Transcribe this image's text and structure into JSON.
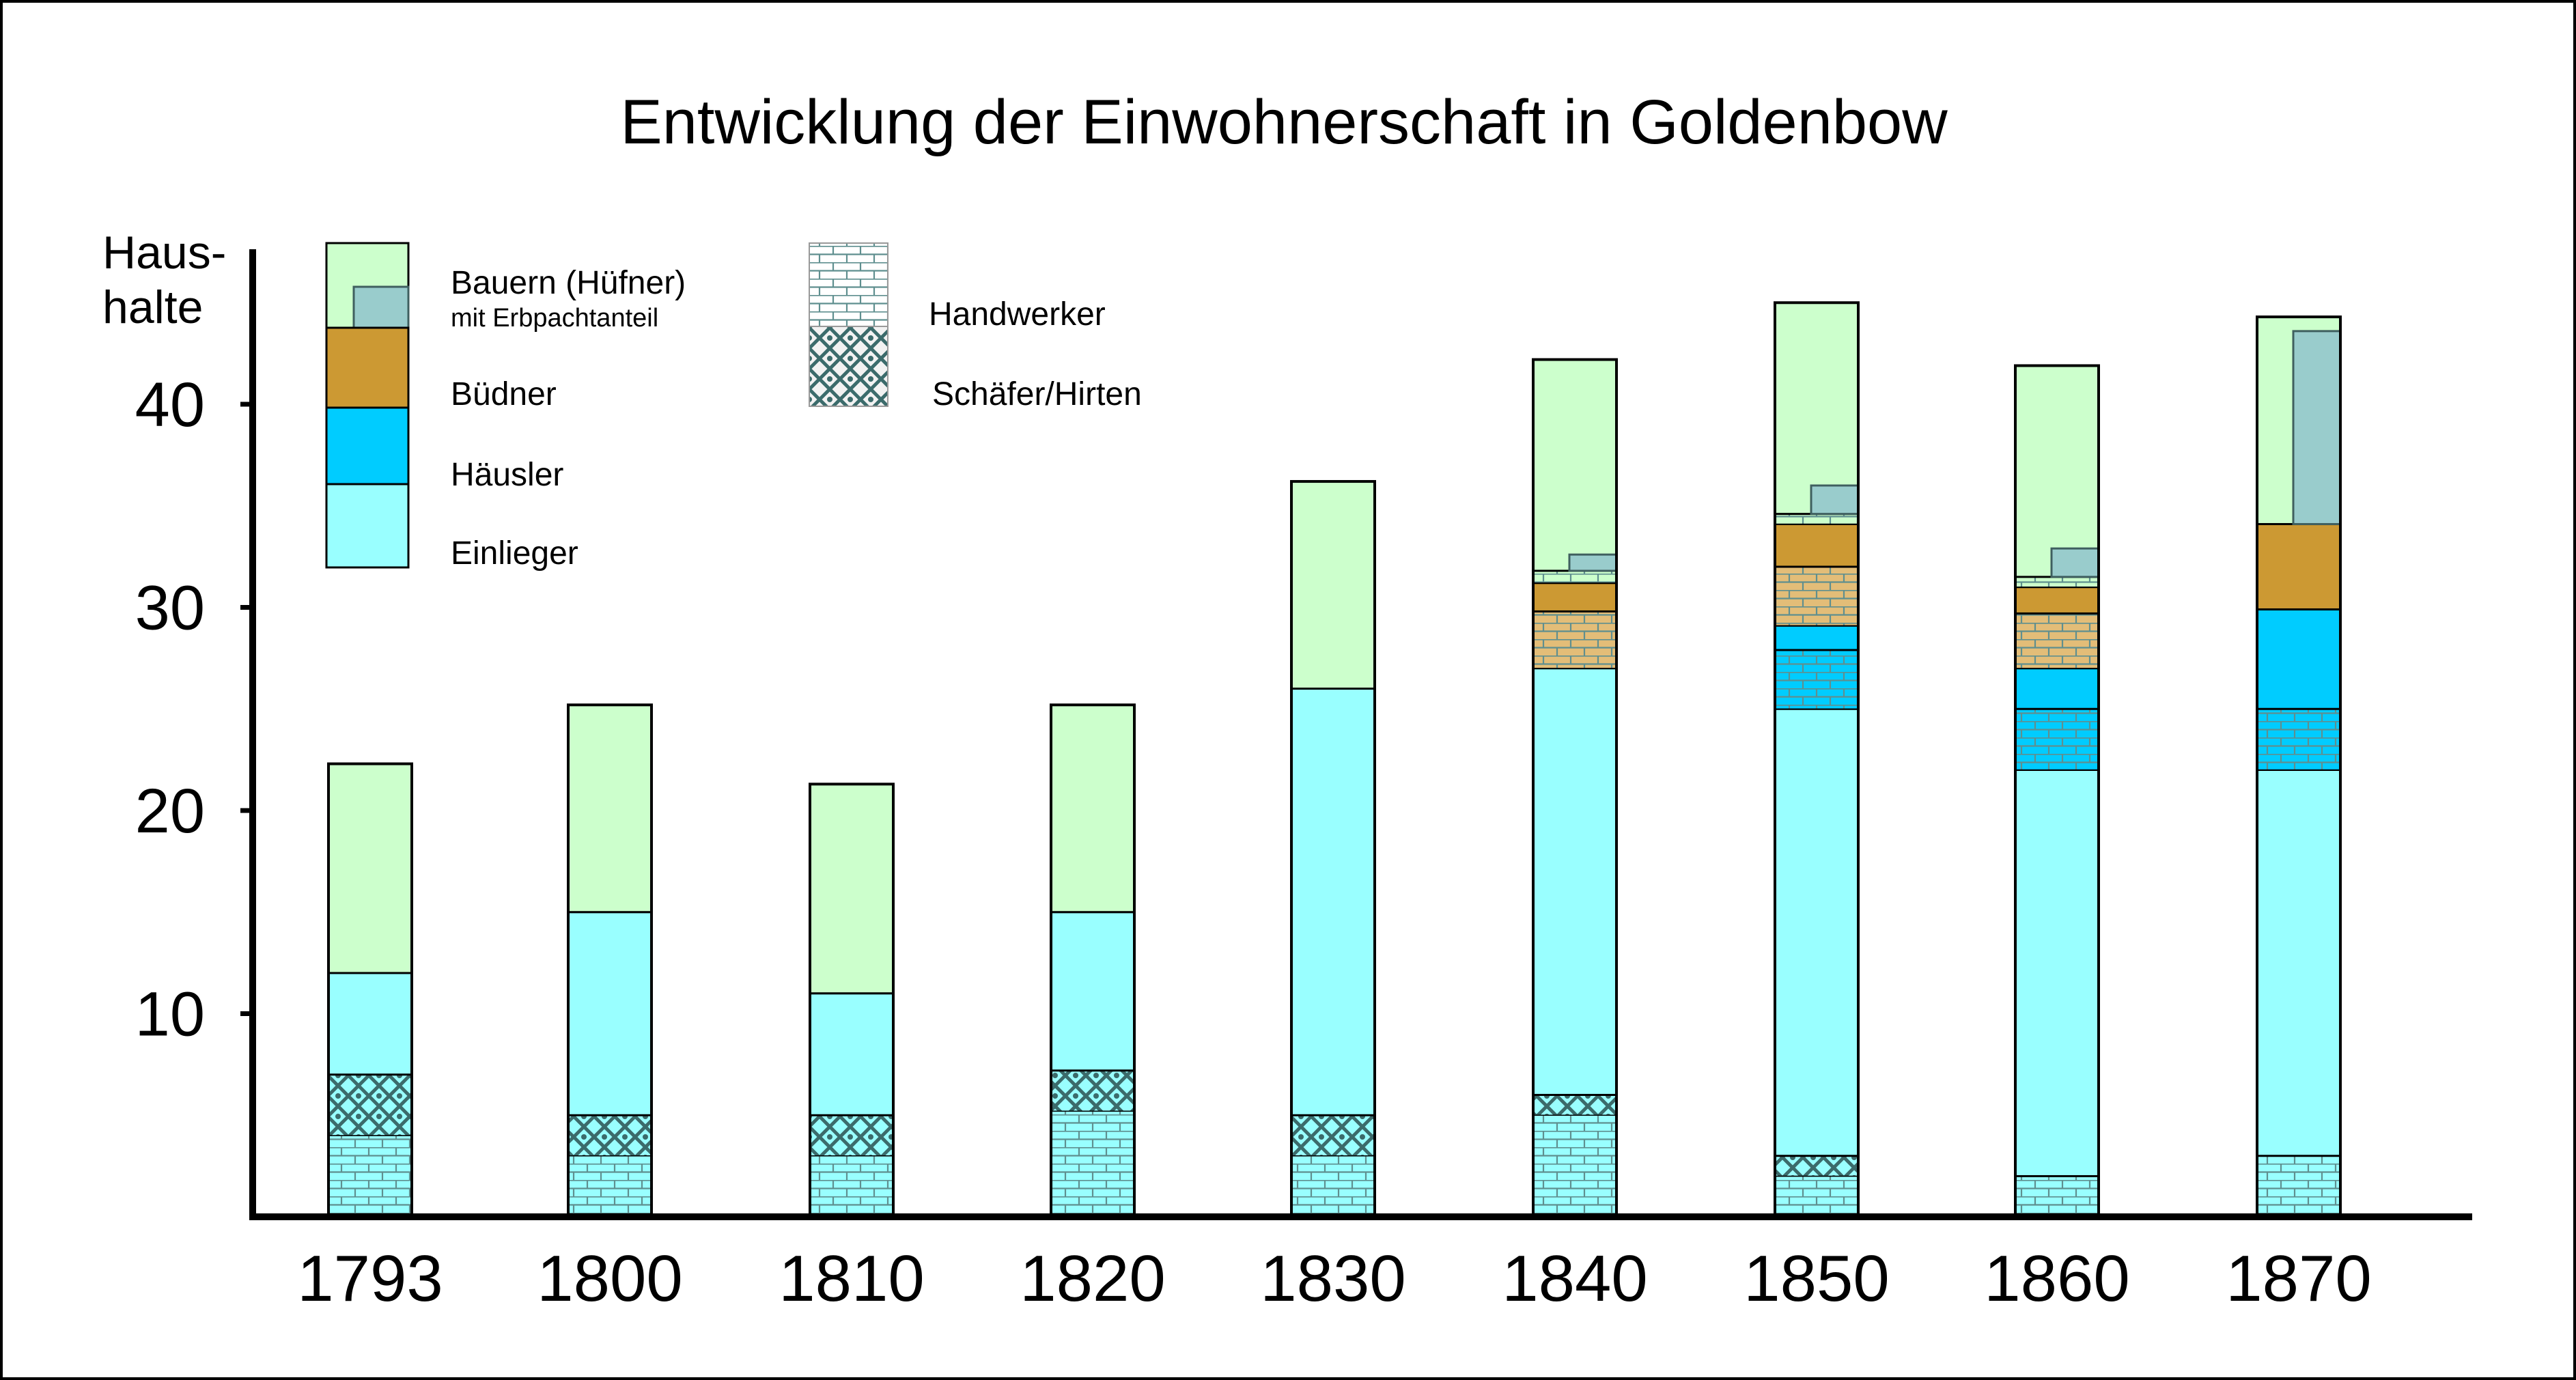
{
  "chart_data": {
    "type": "bar",
    "stacked": true,
    "title": "Entwicklung der Einwohnerschaft in Goldenbow",
    "ylabel_line1": "Haus-",
    "ylabel_line2": "halte",
    "ylim": [
      0,
      47
    ],
    "yticks": [
      10,
      20,
      30,
      40
    ],
    "grid": false,
    "legend_position": "top-left",
    "categories": [
      "1793",
      "1800",
      "1810",
      "1820",
      "1830",
      "1840",
      "1850",
      "1860",
      "1870"
    ],
    "colors": {
      "bauern": "#ccffcc",
      "erbpacht": "#99cccc",
      "buedner": "#cc9933",
      "haeusler": "#00ccff",
      "einlieger": "#99ffff",
      "handwerker_pattern": "#ffffff",
      "schaefer_pattern": "#777777"
    },
    "legend": [
      {
        "key": "bauern",
        "label": "Bauern (Hüfner)",
        "sublabel": "mit Erbpachtanteil"
      },
      {
        "key": "buedner",
        "label": "Büdner"
      },
      {
        "key": "haeusler",
        "label": "Häusler"
      },
      {
        "key": "einlieger",
        "label": "Einlieger"
      },
      {
        "key": "handwerker",
        "label": "Handwerker"
      },
      {
        "key": "schaefer",
        "label": "Schäfer/Hirten"
      }
    ],
    "bars": [
      {
        "year": "1793",
        "segments": [
          {
            "group": "einlieger",
            "pattern": "brick",
            "value": 4
          },
          {
            "group": "einlieger",
            "pattern": "weave",
            "value": 3
          },
          {
            "group": "einlieger",
            "pattern": "solid",
            "value": 5
          },
          {
            "group": "bauern",
            "pattern": "solid",
            "value": 10.3
          }
        ]
      },
      {
        "year": "1800",
        "segments": [
          {
            "group": "einlieger",
            "pattern": "brick",
            "value": 3
          },
          {
            "group": "einlieger",
            "pattern": "weave",
            "value": 2
          },
          {
            "group": "einlieger",
            "pattern": "solid",
            "value": 10
          },
          {
            "group": "bauern",
            "pattern": "solid",
            "value": 10.2
          }
        ]
      },
      {
        "year": "1810",
        "segments": [
          {
            "group": "einlieger",
            "pattern": "brick",
            "value": 3
          },
          {
            "group": "einlieger",
            "pattern": "weave",
            "value": 2
          },
          {
            "group": "einlieger",
            "pattern": "solid",
            "value": 6
          },
          {
            "group": "bauern",
            "pattern": "solid",
            "value": 10.3
          }
        ]
      },
      {
        "year": "1820",
        "segments": [
          {
            "group": "einlieger",
            "pattern": "brick",
            "value": 5.2
          },
          {
            "group": "einlieger",
            "pattern": "weave",
            "value": 2
          },
          {
            "group": "einlieger",
            "pattern": "solid",
            "value": 7.8
          },
          {
            "group": "bauern",
            "pattern": "solid",
            "value": 10.2
          }
        ]
      },
      {
        "year": "1830",
        "segments": [
          {
            "group": "einlieger",
            "pattern": "brick",
            "value": 3
          },
          {
            "group": "einlieger",
            "pattern": "weave",
            "value": 2
          },
          {
            "group": "einlieger",
            "pattern": "solid",
            "value": 21
          },
          {
            "group": "bauern",
            "pattern": "solid",
            "value": 10.2
          }
        ]
      },
      {
        "year": "1840",
        "segments": [
          {
            "group": "einlieger",
            "pattern": "brick",
            "value": 5
          },
          {
            "group": "einlieger",
            "pattern": "weave",
            "value": 1
          },
          {
            "group": "einlieger",
            "pattern": "solid",
            "value": 21
          },
          {
            "group": "buedner",
            "pattern": "brick",
            "value": 2.8
          },
          {
            "group": "buedner",
            "pattern": "solid",
            "value": 1.4
          },
          {
            "group": "bauern",
            "pattern": "brick",
            "value": 0.6
          },
          {
            "group": "bauern",
            "pattern": "solid",
            "value": 10.4,
            "erbpacht": 0.8
          }
        ]
      },
      {
        "year": "1850",
        "segments": [
          {
            "group": "einlieger",
            "pattern": "brick",
            "value": 2
          },
          {
            "group": "einlieger",
            "pattern": "weave",
            "value": 1
          },
          {
            "group": "einlieger",
            "pattern": "solid",
            "value": 22
          },
          {
            "group": "haeusler",
            "pattern": "brick",
            "value": 2.9
          },
          {
            "group": "haeusler",
            "pattern": "solid",
            "value": 1.2
          },
          {
            "group": "buedner",
            "pattern": "brick",
            "value": 2.9
          },
          {
            "group": "buedner",
            "pattern": "solid",
            "value": 2.1
          },
          {
            "group": "bauern",
            "pattern": "brick",
            "value": 0.5
          },
          {
            "group": "bauern",
            "pattern": "solid",
            "value": 10.4,
            "erbpacht": 1.4
          }
        ]
      },
      {
        "year": "1860",
        "segments": [
          {
            "group": "einlieger",
            "pattern": "brick",
            "value": 2
          },
          {
            "group": "einlieger",
            "pattern": "solid",
            "value": 20
          },
          {
            "group": "haeusler",
            "pattern": "brick",
            "value": 3
          },
          {
            "group": "haeusler",
            "pattern": "solid",
            "value": 2
          },
          {
            "group": "buedner",
            "pattern": "brick",
            "value": 2.7
          },
          {
            "group": "buedner",
            "pattern": "solid",
            "value": 1.3
          },
          {
            "group": "bauern",
            "pattern": "brick",
            "value": 0.5
          },
          {
            "group": "bauern",
            "pattern": "solid",
            "value": 10.4,
            "erbpacht": 1.4
          }
        ]
      },
      {
        "year": "1870",
        "segments": [
          {
            "group": "einlieger",
            "pattern": "brick",
            "value": 3
          },
          {
            "group": "einlieger",
            "pattern": "solid",
            "value": 19
          },
          {
            "group": "haeusler",
            "pattern": "brick",
            "value": 3
          },
          {
            "group": "haeusler",
            "pattern": "solid",
            "value": 4.9
          },
          {
            "group": "buedner",
            "pattern": "solid",
            "value": 4.2
          },
          {
            "group": "bauern",
            "pattern": "solid",
            "value": 10.2,
            "erbpacht": 9.5
          }
        ]
      }
    ]
  }
}
